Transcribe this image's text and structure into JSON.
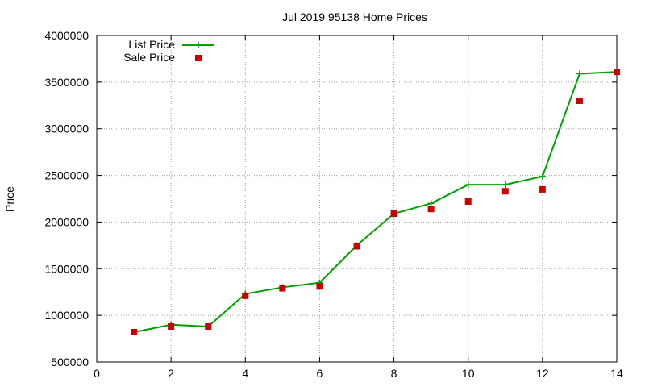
{
  "chart_data": {
    "type": "line",
    "title": "Jul 2019 95138 Home Prices",
    "xlabel": "",
    "ylabel": "Price",
    "xlim": [
      0,
      14
    ],
    "ylim": [
      500000,
      4000000
    ],
    "x_ticks": [
      0,
      2,
      4,
      6,
      8,
      10,
      12,
      14
    ],
    "y_ticks": [
      500000,
      1000000,
      1500000,
      2000000,
      2500000,
      3000000,
      3500000,
      4000000
    ],
    "grid": true,
    "legend_position": "top-left",
    "series": [
      {
        "name": "List Price",
        "style": "line+cross",
        "color": "#00a000",
        "x": [
          1,
          2,
          3,
          4,
          5,
          6,
          7,
          8,
          9,
          10,
          11,
          12,
          13,
          14
        ],
        "y": [
          820000,
          900000,
          880000,
          1230000,
          1300000,
          1350000,
          1750000,
          2090000,
          2200000,
          2400000,
          2400000,
          2490000,
          3590000,
          3610000
        ]
      },
      {
        "name": "Sale Price",
        "style": "square",
        "color": "#cc0000",
        "x": [
          1,
          2,
          3,
          4,
          5,
          6,
          7,
          8,
          9,
          10,
          11,
          12,
          13,
          14
        ],
        "y": [
          820000,
          880000,
          880000,
          1210000,
          1290000,
          1310000,
          1740000,
          2090000,
          2140000,
          2220000,
          2330000,
          2350000,
          3300000,
          3610000
        ]
      }
    ]
  }
}
